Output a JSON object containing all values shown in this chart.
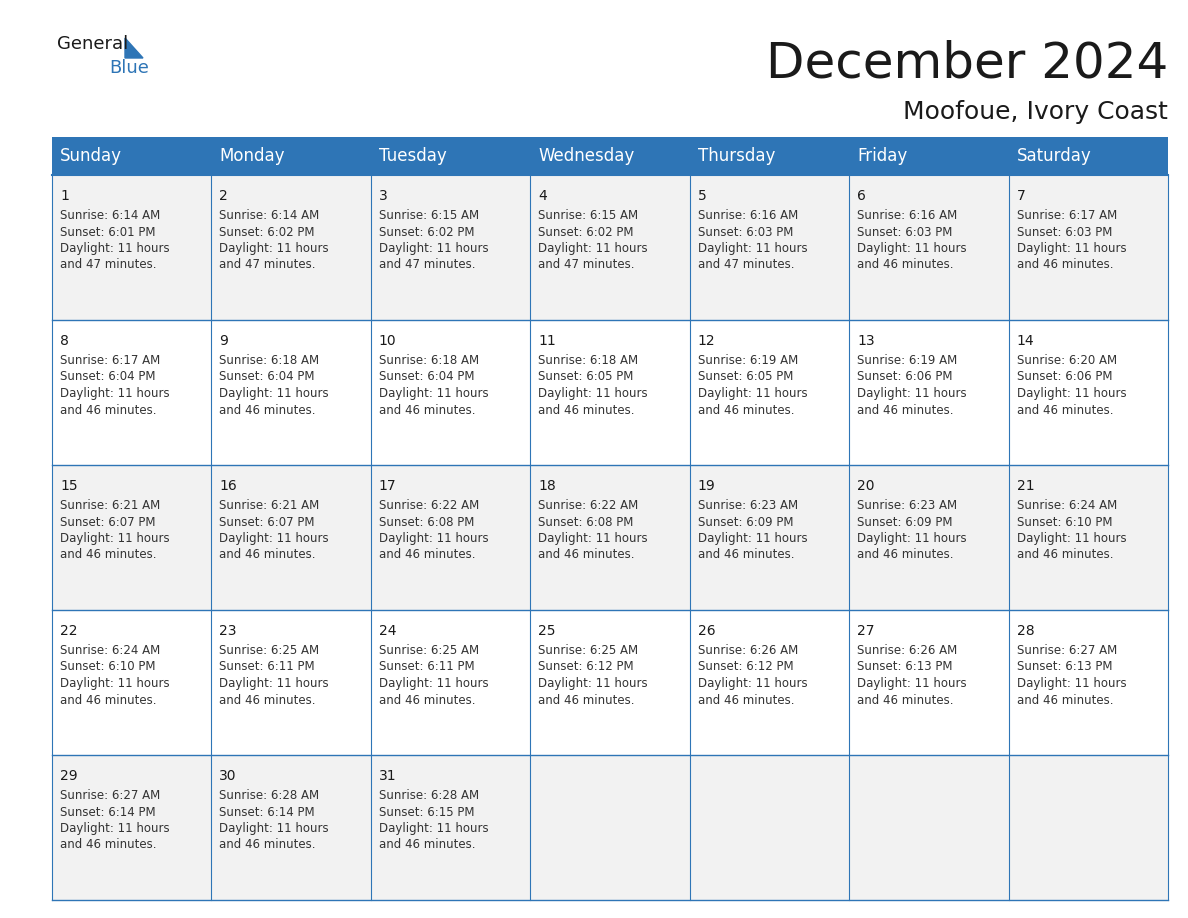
{
  "title": "December 2024",
  "subtitle": "Moofoue, Ivory Coast",
  "header_bg_color": "#2E75B6",
  "header_text_color": "#FFFFFF",
  "cell_border_color": "#2E75B6",
  "cell_bg_even": "#F2F2F2",
  "cell_bg_odd": "#FFFFFF",
  "background_color": "#FFFFFF",
  "text_color": "#000000",
  "day_names": [
    "Sunday",
    "Monday",
    "Tuesday",
    "Wednesday",
    "Thursday",
    "Friday",
    "Saturday"
  ],
  "title_fontsize": 36,
  "subtitle_fontsize": 18,
  "header_fontsize": 12,
  "cell_day_fontsize": 10,
  "cell_text_fontsize": 8.5,
  "days": [
    {
      "day": 1,
      "col": 0,
      "row": 0,
      "sunrise": "6:14 AM",
      "sunset": "6:01 PM",
      "daylight_h": "11 hours",
      "daylight_m": "and 47 minutes."
    },
    {
      "day": 2,
      "col": 1,
      "row": 0,
      "sunrise": "6:14 AM",
      "sunset": "6:02 PM",
      "daylight_h": "11 hours",
      "daylight_m": "and 47 minutes."
    },
    {
      "day": 3,
      "col": 2,
      "row": 0,
      "sunrise": "6:15 AM",
      "sunset": "6:02 PM",
      "daylight_h": "11 hours",
      "daylight_m": "and 47 minutes."
    },
    {
      "day": 4,
      "col": 3,
      "row": 0,
      "sunrise": "6:15 AM",
      "sunset": "6:02 PM",
      "daylight_h": "11 hours",
      "daylight_m": "and 47 minutes."
    },
    {
      "day": 5,
      "col": 4,
      "row": 0,
      "sunrise": "6:16 AM",
      "sunset": "6:03 PM",
      "daylight_h": "11 hours",
      "daylight_m": "and 47 minutes."
    },
    {
      "day": 6,
      "col": 5,
      "row": 0,
      "sunrise": "6:16 AM",
      "sunset": "6:03 PM",
      "daylight_h": "11 hours",
      "daylight_m": "and 46 minutes."
    },
    {
      "day": 7,
      "col": 6,
      "row": 0,
      "sunrise": "6:17 AM",
      "sunset": "6:03 PM",
      "daylight_h": "11 hours",
      "daylight_m": "and 46 minutes."
    },
    {
      "day": 8,
      "col": 0,
      "row": 1,
      "sunrise": "6:17 AM",
      "sunset": "6:04 PM",
      "daylight_h": "11 hours",
      "daylight_m": "and 46 minutes."
    },
    {
      "day": 9,
      "col": 1,
      "row": 1,
      "sunrise": "6:18 AM",
      "sunset": "6:04 PM",
      "daylight_h": "11 hours",
      "daylight_m": "and 46 minutes."
    },
    {
      "day": 10,
      "col": 2,
      "row": 1,
      "sunrise": "6:18 AM",
      "sunset": "6:04 PM",
      "daylight_h": "11 hours",
      "daylight_m": "and 46 minutes."
    },
    {
      "day": 11,
      "col": 3,
      "row": 1,
      "sunrise": "6:18 AM",
      "sunset": "6:05 PM",
      "daylight_h": "11 hours",
      "daylight_m": "and 46 minutes."
    },
    {
      "day": 12,
      "col": 4,
      "row": 1,
      "sunrise": "6:19 AM",
      "sunset": "6:05 PM",
      "daylight_h": "11 hours",
      "daylight_m": "and 46 minutes."
    },
    {
      "day": 13,
      "col": 5,
      "row": 1,
      "sunrise": "6:19 AM",
      "sunset": "6:06 PM",
      "daylight_h": "11 hours",
      "daylight_m": "and 46 minutes."
    },
    {
      "day": 14,
      "col": 6,
      "row": 1,
      "sunrise": "6:20 AM",
      "sunset": "6:06 PM",
      "daylight_h": "11 hours",
      "daylight_m": "and 46 minutes."
    },
    {
      "day": 15,
      "col": 0,
      "row": 2,
      "sunrise": "6:21 AM",
      "sunset": "6:07 PM",
      "daylight_h": "11 hours",
      "daylight_m": "and 46 minutes."
    },
    {
      "day": 16,
      "col": 1,
      "row": 2,
      "sunrise": "6:21 AM",
      "sunset": "6:07 PM",
      "daylight_h": "11 hours",
      "daylight_m": "and 46 minutes."
    },
    {
      "day": 17,
      "col": 2,
      "row": 2,
      "sunrise": "6:22 AM",
      "sunset": "6:08 PM",
      "daylight_h": "11 hours",
      "daylight_m": "and 46 minutes."
    },
    {
      "day": 18,
      "col": 3,
      "row": 2,
      "sunrise": "6:22 AM",
      "sunset": "6:08 PM",
      "daylight_h": "11 hours",
      "daylight_m": "and 46 minutes."
    },
    {
      "day": 19,
      "col": 4,
      "row": 2,
      "sunrise": "6:23 AM",
      "sunset": "6:09 PM",
      "daylight_h": "11 hours",
      "daylight_m": "and 46 minutes."
    },
    {
      "day": 20,
      "col": 5,
      "row": 2,
      "sunrise": "6:23 AM",
      "sunset": "6:09 PM",
      "daylight_h": "11 hours",
      "daylight_m": "and 46 minutes."
    },
    {
      "day": 21,
      "col": 6,
      "row": 2,
      "sunrise": "6:24 AM",
      "sunset": "6:10 PM",
      "daylight_h": "11 hours",
      "daylight_m": "and 46 minutes."
    },
    {
      "day": 22,
      "col": 0,
      "row": 3,
      "sunrise": "6:24 AM",
      "sunset": "6:10 PM",
      "daylight_h": "11 hours",
      "daylight_m": "and 46 minutes."
    },
    {
      "day": 23,
      "col": 1,
      "row": 3,
      "sunrise": "6:25 AM",
      "sunset": "6:11 PM",
      "daylight_h": "11 hours",
      "daylight_m": "and 46 minutes."
    },
    {
      "day": 24,
      "col": 2,
      "row": 3,
      "sunrise": "6:25 AM",
      "sunset": "6:11 PM",
      "daylight_h": "11 hours",
      "daylight_m": "and 46 minutes."
    },
    {
      "day": 25,
      "col": 3,
      "row": 3,
      "sunrise": "6:25 AM",
      "sunset": "6:12 PM",
      "daylight_h": "11 hours",
      "daylight_m": "and 46 minutes."
    },
    {
      "day": 26,
      "col": 4,
      "row": 3,
      "sunrise": "6:26 AM",
      "sunset": "6:12 PM",
      "daylight_h": "11 hours",
      "daylight_m": "and 46 minutes."
    },
    {
      "day": 27,
      "col": 5,
      "row": 3,
      "sunrise": "6:26 AM",
      "sunset": "6:13 PM",
      "daylight_h": "11 hours",
      "daylight_m": "and 46 minutes."
    },
    {
      "day": 28,
      "col": 6,
      "row": 3,
      "sunrise": "6:27 AM",
      "sunset": "6:13 PM",
      "daylight_h": "11 hours",
      "daylight_m": "and 46 minutes."
    },
    {
      "day": 29,
      "col": 0,
      "row": 4,
      "sunrise": "6:27 AM",
      "sunset": "6:14 PM",
      "daylight_h": "11 hours",
      "daylight_m": "and 46 minutes."
    },
    {
      "day": 30,
      "col": 1,
      "row": 4,
      "sunrise": "6:28 AM",
      "sunset": "6:14 PM",
      "daylight_h": "11 hours",
      "daylight_m": "and 46 minutes."
    },
    {
      "day": 31,
      "col": 2,
      "row": 4,
      "sunrise": "6:28 AM",
      "sunset": "6:15 PM",
      "daylight_h": "11 hours",
      "daylight_m": "and 46 minutes."
    }
  ]
}
